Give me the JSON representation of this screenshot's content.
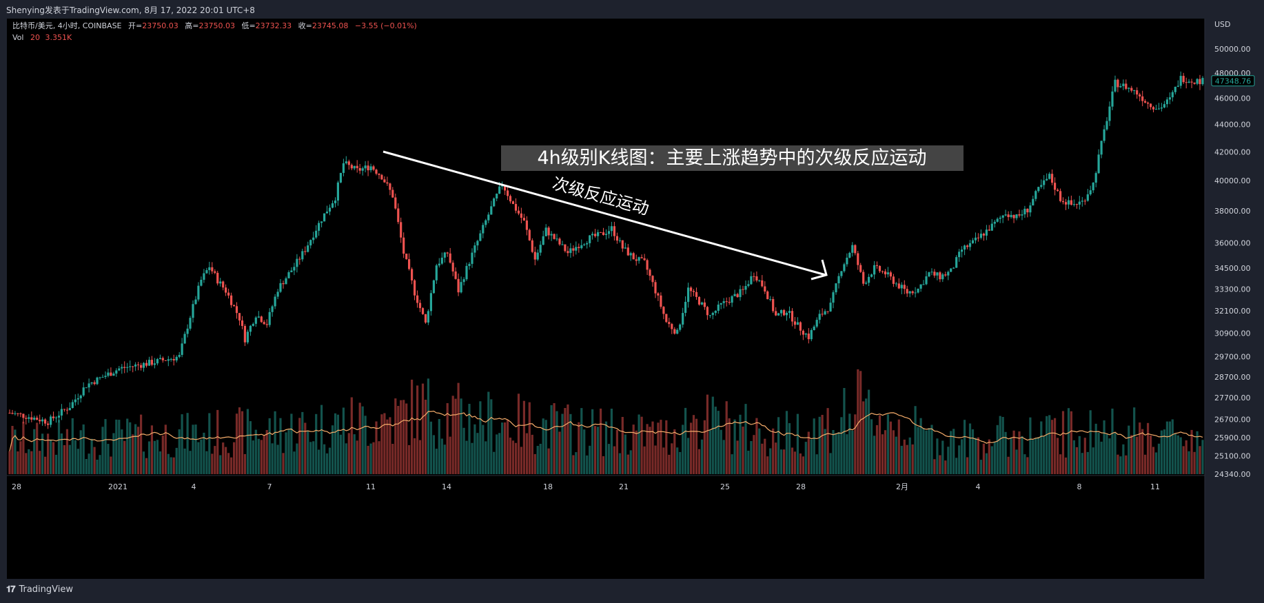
{
  "attribution": "Shenying发表于TradingView.com, 8月 17, 2022 20:01 UTC+8",
  "legend": {
    "symbol": "比特币/美元, 4小时, COINBASE",
    "open_label": "开=",
    "open": "23750.03",
    "high_label": "高=",
    "high": "23750.03",
    "low_label": "低=",
    "low": "23732.33",
    "close_label": "收=",
    "close": "23745.08",
    "change": "−3.55 (−0.01%)",
    "vol_label": "Vol",
    "vol_period": "20",
    "vol_value": "3.351K"
  },
  "footer": {
    "brand": "TradingView",
    "brand_icon": "tradingview-logo-icon"
  },
  "colors": {
    "up": "#26a69a",
    "down": "#ef5350",
    "background": "#000000",
    "frame": "#1e222d",
    "vol_ma": "#f6ad6b",
    "annotation": "#ffffff"
  },
  "chart_data": {
    "type": "candlestick",
    "currency_label": "USD",
    "y_scale": "log",
    "ylim": [
      24340,
      50000
    ],
    "y_ticks": [
      "50000.00",
      "48000.00",
      "46000.00",
      "44000.00",
      "42000.00",
      "40000.00",
      "38000.00",
      "36000.00",
      "34500.00",
      "33300.00",
      "32100.00",
      "30900.00",
      "29700.00",
      "28700.00",
      "27700.00",
      "26700.00",
      "25900.00",
      "25100.00",
      "24340.00"
    ],
    "x_ticks": [
      "28",
      "2021",
      "4",
      "7",
      "11",
      "14",
      "18",
      "21",
      "25",
      "28",
      "2月",
      "4",
      "8",
      "11"
    ],
    "last_price": "47348.76",
    "annotation_title": "4h级别K线图：主要上涨趋势中的次级反应运动",
    "arrow_label": "次级反应运动",
    "anchors": [
      [
        0,
        27000
      ],
      [
        8,
        26800
      ],
      [
        14,
        26600
      ],
      [
        22,
        27300
      ],
      [
        28,
        28300
      ],
      [
        40,
        29100
      ],
      [
        52,
        29400
      ],
      [
        62,
        29700
      ],
      [
        66,
        31800
      ],
      [
        70,
        33800
      ],
      [
        73,
        34600
      ],
      [
        76,
        33800
      ],
      [
        79,
        33200
      ],
      [
        84,
        31700
      ],
      [
        86,
        30600
      ],
      [
        90,
        31900
      ],
      [
        94,
        31400
      ],
      [
        98,
        33300
      ],
      [
        104,
        34600
      ],
      [
        108,
        35600
      ],
      [
        114,
        37500
      ],
      [
        119,
        38900
      ],
      [
        122,
        41200
      ],
      [
        127,
        40700
      ],
      [
        132,
        41000
      ],
      [
        136,
        40300
      ],
      [
        140,
        39000
      ],
      [
        144,
        35400
      ],
      [
        148,
        33100
      ],
      [
        152,
        31400
      ],
      [
        156,
        34700
      ],
      [
        160,
        35400
      ],
      [
        164,
        33200
      ],
      [
        168,
        34900
      ],
      [
        172,
        36500
      ],
      [
        176,
        38200
      ],
      [
        180,
        39800
      ],
      [
        184,
        38400
      ],
      [
        188,
        37300
      ],
      [
        192,
        35000
      ],
      [
        196,
        36800
      ],
      [
        200,
        36100
      ],
      [
        204,
        35400
      ],
      [
        208,
        35900
      ],
      [
        212,
        36300
      ],
      [
        216,
        36500
      ],
      [
        220,
        36900
      ],
      [
        224,
        35700
      ],
      [
        228,
        35100
      ],
      [
        232,
        34800
      ],
      [
        236,
        33200
      ],
      [
        240,
        31500
      ],
      [
        244,
        30900
      ],
      [
        248,
        33300
      ],
      [
        252,
        32600
      ],
      [
        256,
        31800
      ],
      [
        260,
        32400
      ],
      [
        264,
        32800
      ],
      [
        268,
        33200
      ],
      [
        272,
        34200
      ],
      [
        276,
        33300
      ],
      [
        280,
        31800
      ],
      [
        284,
        32100
      ],
      [
        288,
        31300
      ],
      [
        292,
        30700
      ],
      [
        296,
        31800
      ],
      [
        300,
        32400
      ],
      [
        304,
        34500
      ],
      [
        308,
        35800
      ],
      [
        312,
        33600
      ],
      [
        316,
        34500
      ],
      [
        320,
        34200
      ],
      [
        324,
        33600
      ],
      [
        328,
        33100
      ],
      [
        332,
        33300
      ],
      [
        336,
        34200
      ],
      [
        340,
        34000
      ],
      [
        344,
        34300
      ],
      [
        348,
        35600
      ],
      [
        352,
        36000
      ],
      [
        356,
        36600
      ],
      [
        360,
        37200
      ],
      [
        364,
        37900
      ],
      [
        368,
        37600
      ],
      [
        372,
        38100
      ],
      [
        376,
        39400
      ],
      [
        380,
        40300
      ],
      [
        384,
        38800
      ],
      [
        388,
        38400
      ],
      [
        392,
        38600
      ],
      [
        396,
        39800
      ],
      [
        400,
        43500
      ],
      [
        404,
        47200
      ],
      [
        408,
        46900
      ],
      [
        412,
        46400
      ],
      [
        416,
        45600
      ],
      [
        420,
        45200
      ],
      [
        424,
        45900
      ],
      [
        428,
        47600
      ],
      [
        432,
        47400
      ],
      [
        436,
        47348
      ]
    ],
    "volume_anchors": [
      [
        0,
        3
      ],
      [
        60,
        3.5
      ],
      [
        100,
        4
      ],
      [
        140,
        5
      ],
      [
        150,
        6
      ],
      [
        170,
        5
      ],
      [
        210,
        4
      ],
      [
        240,
        3.5
      ],
      [
        250,
        5
      ],
      [
        280,
        3.5
      ],
      [
        300,
        4.5
      ],
      [
        310,
        6
      ],
      [
        340,
        3
      ],
      [
        400,
        4
      ],
      [
        436,
        3.4
      ]
    ]
  }
}
